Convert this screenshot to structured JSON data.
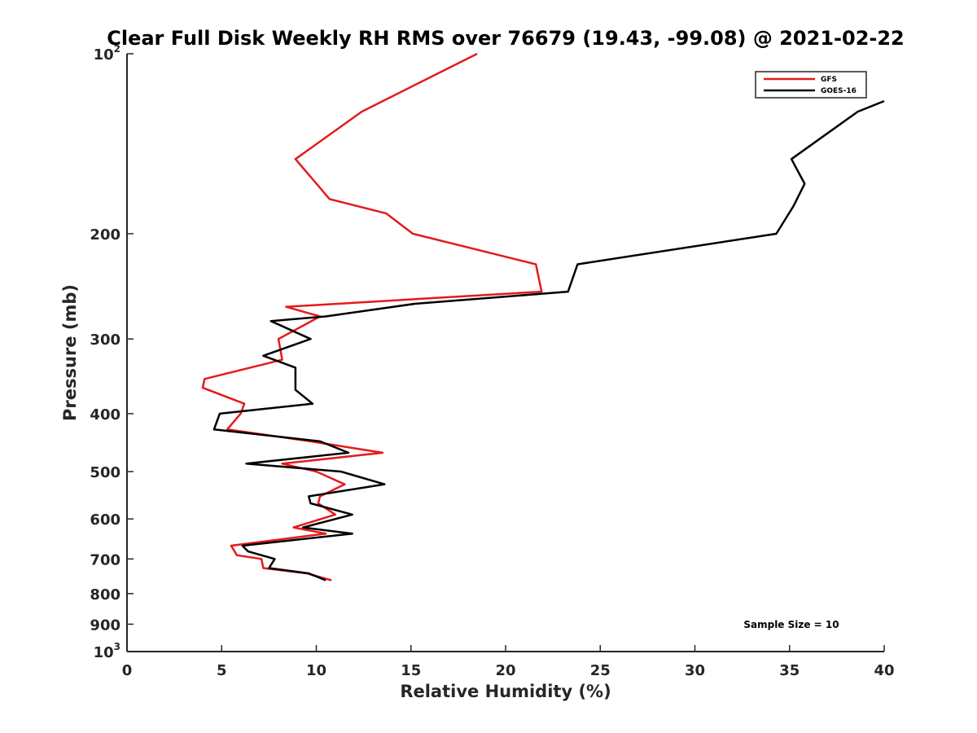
{
  "chart_data": {
    "type": "line",
    "title": "Clear Full Disk Weekly RH RMS over 76679 (19.43, -99.08) @ 2021-02-22",
    "xlabel": "Relative Humidity (%)",
    "ylabel": "Pressure (mb)",
    "xlim": [
      0,
      40
    ],
    "ylim": [
      100,
      1000
    ],
    "y_scale": "log",
    "y_reversed": true,
    "x_ticks": [
      {
        "value": 0,
        "label": "0"
      },
      {
        "value": 5,
        "label": "5"
      },
      {
        "value": 10,
        "label": "10"
      },
      {
        "value": 15,
        "label": "15"
      },
      {
        "value": 20,
        "label": "20"
      },
      {
        "value": 25,
        "label": "25"
      },
      {
        "value": 30,
        "label": "30"
      },
      {
        "value": 35,
        "label": "35"
      },
      {
        "value": 40,
        "label": "40"
      }
    ],
    "y_ticks": [
      {
        "value": 100,
        "label": "",
        "base": "10",
        "exp": "2"
      },
      {
        "value": 200,
        "label": "200"
      },
      {
        "value": 300,
        "label": "300"
      },
      {
        "value": 400,
        "label": "400"
      },
      {
        "value": 500,
        "label": "500"
      },
      {
        "value": 600,
        "label": "600"
      },
      {
        "value": 700,
        "label": "700"
      },
      {
        "value": 800,
        "label": "800"
      },
      {
        "value": 900,
        "label": "900"
      },
      {
        "value": 1000,
        "label": "",
        "base": "10",
        "exp": "3"
      }
    ],
    "legend": {
      "placement": "top-right"
    },
    "grid": false,
    "series": [
      {
        "name": "GFS",
        "color": "#e41a1c",
        "points": [
          [
            18.5,
            100
          ],
          [
            12.4,
            125
          ],
          [
            8.9,
            150
          ],
          [
            10.7,
            175
          ],
          [
            13.7,
            185
          ],
          [
            15.1,
            200
          ],
          [
            21.6,
            225
          ],
          [
            21.9,
            250
          ],
          [
            8.4,
            265
          ],
          [
            10.2,
            275
          ],
          [
            8.0,
            300
          ],
          [
            8.2,
            325
          ],
          [
            4.1,
            350
          ],
          [
            4.0,
            362
          ],
          [
            6.2,
            385
          ],
          [
            6.0,
            400
          ],
          [
            5.3,
            425
          ],
          [
            9.7,
            445
          ],
          [
            13.5,
            465
          ],
          [
            8.2,
            485
          ],
          [
            10.0,
            500
          ],
          [
            11.5,
            525
          ],
          [
            10.2,
            550
          ],
          [
            10.1,
            565
          ],
          [
            11.0,
            590
          ],
          [
            8.8,
            620
          ],
          [
            10.5,
            635
          ],
          [
            5.5,
            665
          ],
          [
            5.8,
            690
          ],
          [
            7.1,
            700
          ],
          [
            7.2,
            725
          ],
          [
            9.5,
            740
          ],
          [
            10.8,
            760
          ]
        ]
      },
      {
        "name": "GOES-16",
        "color": "#000000",
        "points": [
          [
            40.0,
            120
          ],
          [
            38.6,
            125
          ],
          [
            35.1,
            150
          ],
          [
            35.8,
            165
          ],
          [
            35.2,
            180
          ],
          [
            34.3,
            200
          ],
          [
            23.8,
            225
          ],
          [
            23.3,
            250
          ],
          [
            15.2,
            262
          ],
          [
            10.5,
            275
          ],
          [
            7.6,
            280
          ],
          [
            9.7,
            300
          ],
          [
            7.2,
            320
          ],
          [
            8.9,
            335
          ],
          [
            8.9,
            365
          ],
          [
            9.8,
            385
          ],
          [
            4.9,
            400
          ],
          [
            4.6,
            425
          ],
          [
            10.2,
            445
          ],
          [
            11.7,
            465
          ],
          [
            6.3,
            485
          ],
          [
            11.3,
            500
          ],
          [
            13.6,
            525
          ],
          [
            9.6,
            550
          ],
          [
            9.7,
            565
          ],
          [
            11.9,
            590
          ],
          [
            9.3,
            620
          ],
          [
            11.9,
            635
          ],
          [
            6.1,
            665
          ],
          [
            6.4,
            680
          ],
          [
            7.8,
            700
          ],
          [
            7.5,
            725
          ],
          [
            9.6,
            740
          ],
          [
            10.5,
            760
          ]
        ]
      }
    ],
    "annotations": [
      {
        "text": "Sample Size = 10",
        "x": 35,
        "y": 900
      }
    ]
  }
}
